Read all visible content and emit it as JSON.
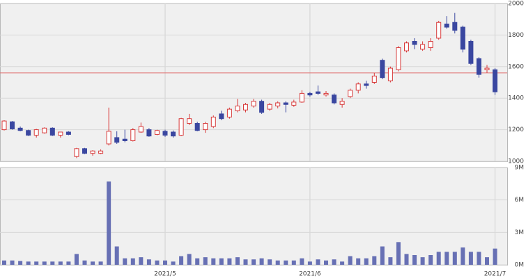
{
  "chart_data": [
    {
      "type": "candlestick",
      "categories": [
        null,
        null,
        null,
        null,
        null,
        null,
        null,
        null,
        null,
        null,
        null,
        null,
        null,
        null,
        null,
        null,
        null,
        null,
        null,
        null,
        null,
        null,
        null,
        null,
        null,
        null,
        null,
        null,
        null,
        null,
        null,
        null,
        null,
        null,
        null,
        null,
        null,
        null,
        null,
        null,
        null,
        null,
        null,
        null,
        null,
        null,
        null,
        null,
        null,
        null,
        null,
        null,
        null,
        null,
        null,
        null,
        null,
        null,
        null,
        null,
        null,
        null
      ],
      "open": [
        1200,
        1250,
        1210,
        1195,
        1165,
        1180,
        1210,
        1165,
        1185,
        1030,
        1080,
        1050,
        1050,
        1110,
        1150,
        1140,
        1130,
        1185,
        1200,
        1170,
        1190,
        1185,
        1165,
        1240,
        1240,
        1200,
        1220,
        1300,
        1280,
        1320,
        1325,
        1350,
        1380,
        1330,
        1350,
        1370,
        1355,
        1375,
        1430,
        1440,
        1420,
        1420,
        1360,
        1410,
        1450,
        1490,
        1500,
        1640,
        1510,
        1580,
        1700,
        1760,
        1710,
        1720,
        1780,
        1870,
        1880,
        1850,
        1760,
        1650,
        1580,
        1580
      ],
      "high": [
        1260,
        1255,
        1220,
        1200,
        1205,
        1215,
        1215,
        1185,
        1190,
        1085,
        1085,
        1070,
        1075,
        1340,
        1190,
        1200,
        1210,
        1245,
        1210,
        1200,
        1200,
        1195,
        1275,
        1300,
        1250,
        1250,
        1290,
        1320,
        1340,
        1395,
        1370,
        1395,
        1390,
        1370,
        1380,
        1380,
        1390,
        1450,
        1440,
        1480,
        1445,
        1430,
        1400,
        1460,
        1500,
        1510,
        1560,
        1650,
        1600,
        1730,
        1760,
        1780,
        1760,
        1780,
        1890,
        1920,
        1940,
        1860,
        1770,
        1660,
        1610,
        1590
      ],
      "low": [
        1195,
        1200,
        1190,
        1160,
        1150,
        1175,
        1160,
        1150,
        1165,
        1020,
        1045,
        1035,
        1045,
        1100,
        1110,
        1120,
        1125,
        1180,
        1155,
        1165,
        1155,
        1150,
        1160,
        1230,
        1190,
        1180,
        1210,
        1260,
        1270,
        1310,
        1310,
        1340,
        1300,
        1320,
        1335,
        1310,
        1345,
        1370,
        1410,
        1420,
        1410,
        1360,
        1340,
        1400,
        1430,
        1460,
        1490,
        1520,
        1500,
        1570,
        1690,
        1710,
        1700,
        1700,
        1770,
        1840,
        1810,
        1690,
        1610,
        1530,
        1560,
        1420
      ],
      "close": [
        1255,
        1205,
        1195,
        1165,
        1200,
        1210,
        1165,
        1185,
        1170,
        1080,
        1050,
        1065,
        1065,
        1190,
        1120,
        1130,
        1200,
        1220,
        1160,
        1195,
        1165,
        1160,
        1270,
        1270,
        1195,
        1240,
        1280,
        1270,
        1330,
        1350,
        1360,
        1380,
        1310,
        1360,
        1370,
        1360,
        1375,
        1430,
        1420,
        1430,
        1430,
        1370,
        1380,
        1450,
        1490,
        1480,
        1540,
        1530,
        1590,
        1720,
        1750,
        1740,
        1740,
        1760,
        1880,
        1850,
        1830,
        1710,
        1620,
        1550,
        1590,
        1440
      ],
      "up_color": "#d83a3a",
      "down_color": "#3a47a0",
      "reference_line": 1560,
      "reference_color": "#e07070",
      "ylim": [
        1000,
        2000
      ],
      "yticks": [
        1000,
        1200,
        1400,
        1600,
        1800,
        2000
      ],
      "grid": true
    },
    {
      "type": "bar",
      "categories": [
        null,
        null,
        null,
        null,
        null,
        null,
        null,
        null,
        null,
        null,
        null,
        null,
        null,
        null,
        null,
        null,
        null,
        null,
        null,
        null,
        "2021/5",
        null,
        null,
        null,
        null,
        null,
        null,
        null,
        null,
        null,
        null,
        null,
        null,
        null,
        null,
        null,
        null,
        null,
        "2021/6",
        null,
        null,
        null,
        null,
        null,
        null,
        null,
        null,
        null,
        null,
        null,
        null,
        null,
        null,
        null,
        null,
        null,
        null,
        null,
        null,
        null,
        null,
        "2021/7"
      ],
      "values": [
        0.4,
        0.4,
        0.35,
        0.3,
        0.3,
        0.3,
        0.3,
        0.3,
        0.3,
        1.0,
        0.4,
        0.3,
        0.3,
        7.7,
        1.7,
        0.6,
        0.6,
        0.7,
        0.5,
        0.4,
        0.4,
        0.3,
        0.8,
        1.0,
        0.6,
        0.7,
        0.6,
        0.6,
        0.6,
        0.7,
        0.5,
        0.5,
        0.6,
        0.5,
        0.4,
        0.4,
        0.4,
        0.6,
        0.3,
        0.5,
        0.4,
        0.5,
        0.3,
        0.8,
        0.6,
        0.6,
        0.8,
        1.7,
        0.7,
        2.1,
        1.0,
        0.9,
        0.7,
        0.9,
        1.2,
        1.2,
        1.2,
        1.6,
        1.2,
        1.2,
        0.7,
        1.5
      ],
      "color": "#6770b4",
      "ylim": [
        0,
        9
      ],
      "yticks": [
        {
          "value": 0,
          "label": "0M"
        },
        {
          "value": 3,
          "label": "3M"
        },
        {
          "value": 6,
          "label": "6M"
        },
        {
          "value": 9,
          "label": "9M"
        }
      ],
      "grid": true
    }
  ]
}
